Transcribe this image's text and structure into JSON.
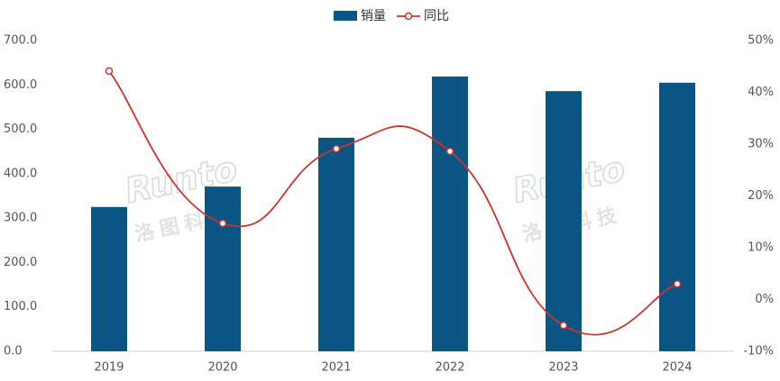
{
  "chart_data": {
    "type": "bar-line",
    "categories": [
      "2019",
      "2020",
      "2021",
      "2022",
      "2023",
      "2024"
    ],
    "series": [
      {
        "name": "销量",
        "type": "bar",
        "color": "#0b5585",
        "values": [
          325,
          371,
          481,
          619,
          586,
          605
        ]
      },
      {
        "name": "同比",
        "type": "line",
        "axis": "y2",
        "color": "#c8352b",
        "values": [
          44.1,
          14.7,
          29.1,
          28.6,
          -5.0,
          3.0
        ]
      }
    ],
    "ylim": [
      0,
      700
    ],
    "yticks": [
      {
        "value": 0,
        "label": "0.0"
      },
      {
        "value": 100,
        "label": "100.0"
      },
      {
        "value": 200,
        "label": "200.0"
      },
      {
        "value": 300,
        "label": "300.0"
      },
      {
        "value": 400,
        "label": "400.0"
      },
      {
        "value": 500,
        "label": "500.0"
      },
      {
        "value": 600,
        "label": "600.0"
      },
      {
        "value": 700,
        "label": "700.0"
      }
    ],
    "y2lim": [
      -10,
      50
    ],
    "y2ticks": [
      {
        "value": -10,
        "label": "-10%"
      },
      {
        "value": 0,
        "label": "0%"
      },
      {
        "value": 10,
        "label": "10%"
      },
      {
        "value": 20,
        "label": "20%"
      },
      {
        "value": 30,
        "label": "30%"
      },
      {
        "value": 40,
        "label": "40%"
      },
      {
        "value": 50,
        "label": "50%"
      }
    ],
    "watermark": [
      "Runto",
      "洛图科技"
    ]
  }
}
